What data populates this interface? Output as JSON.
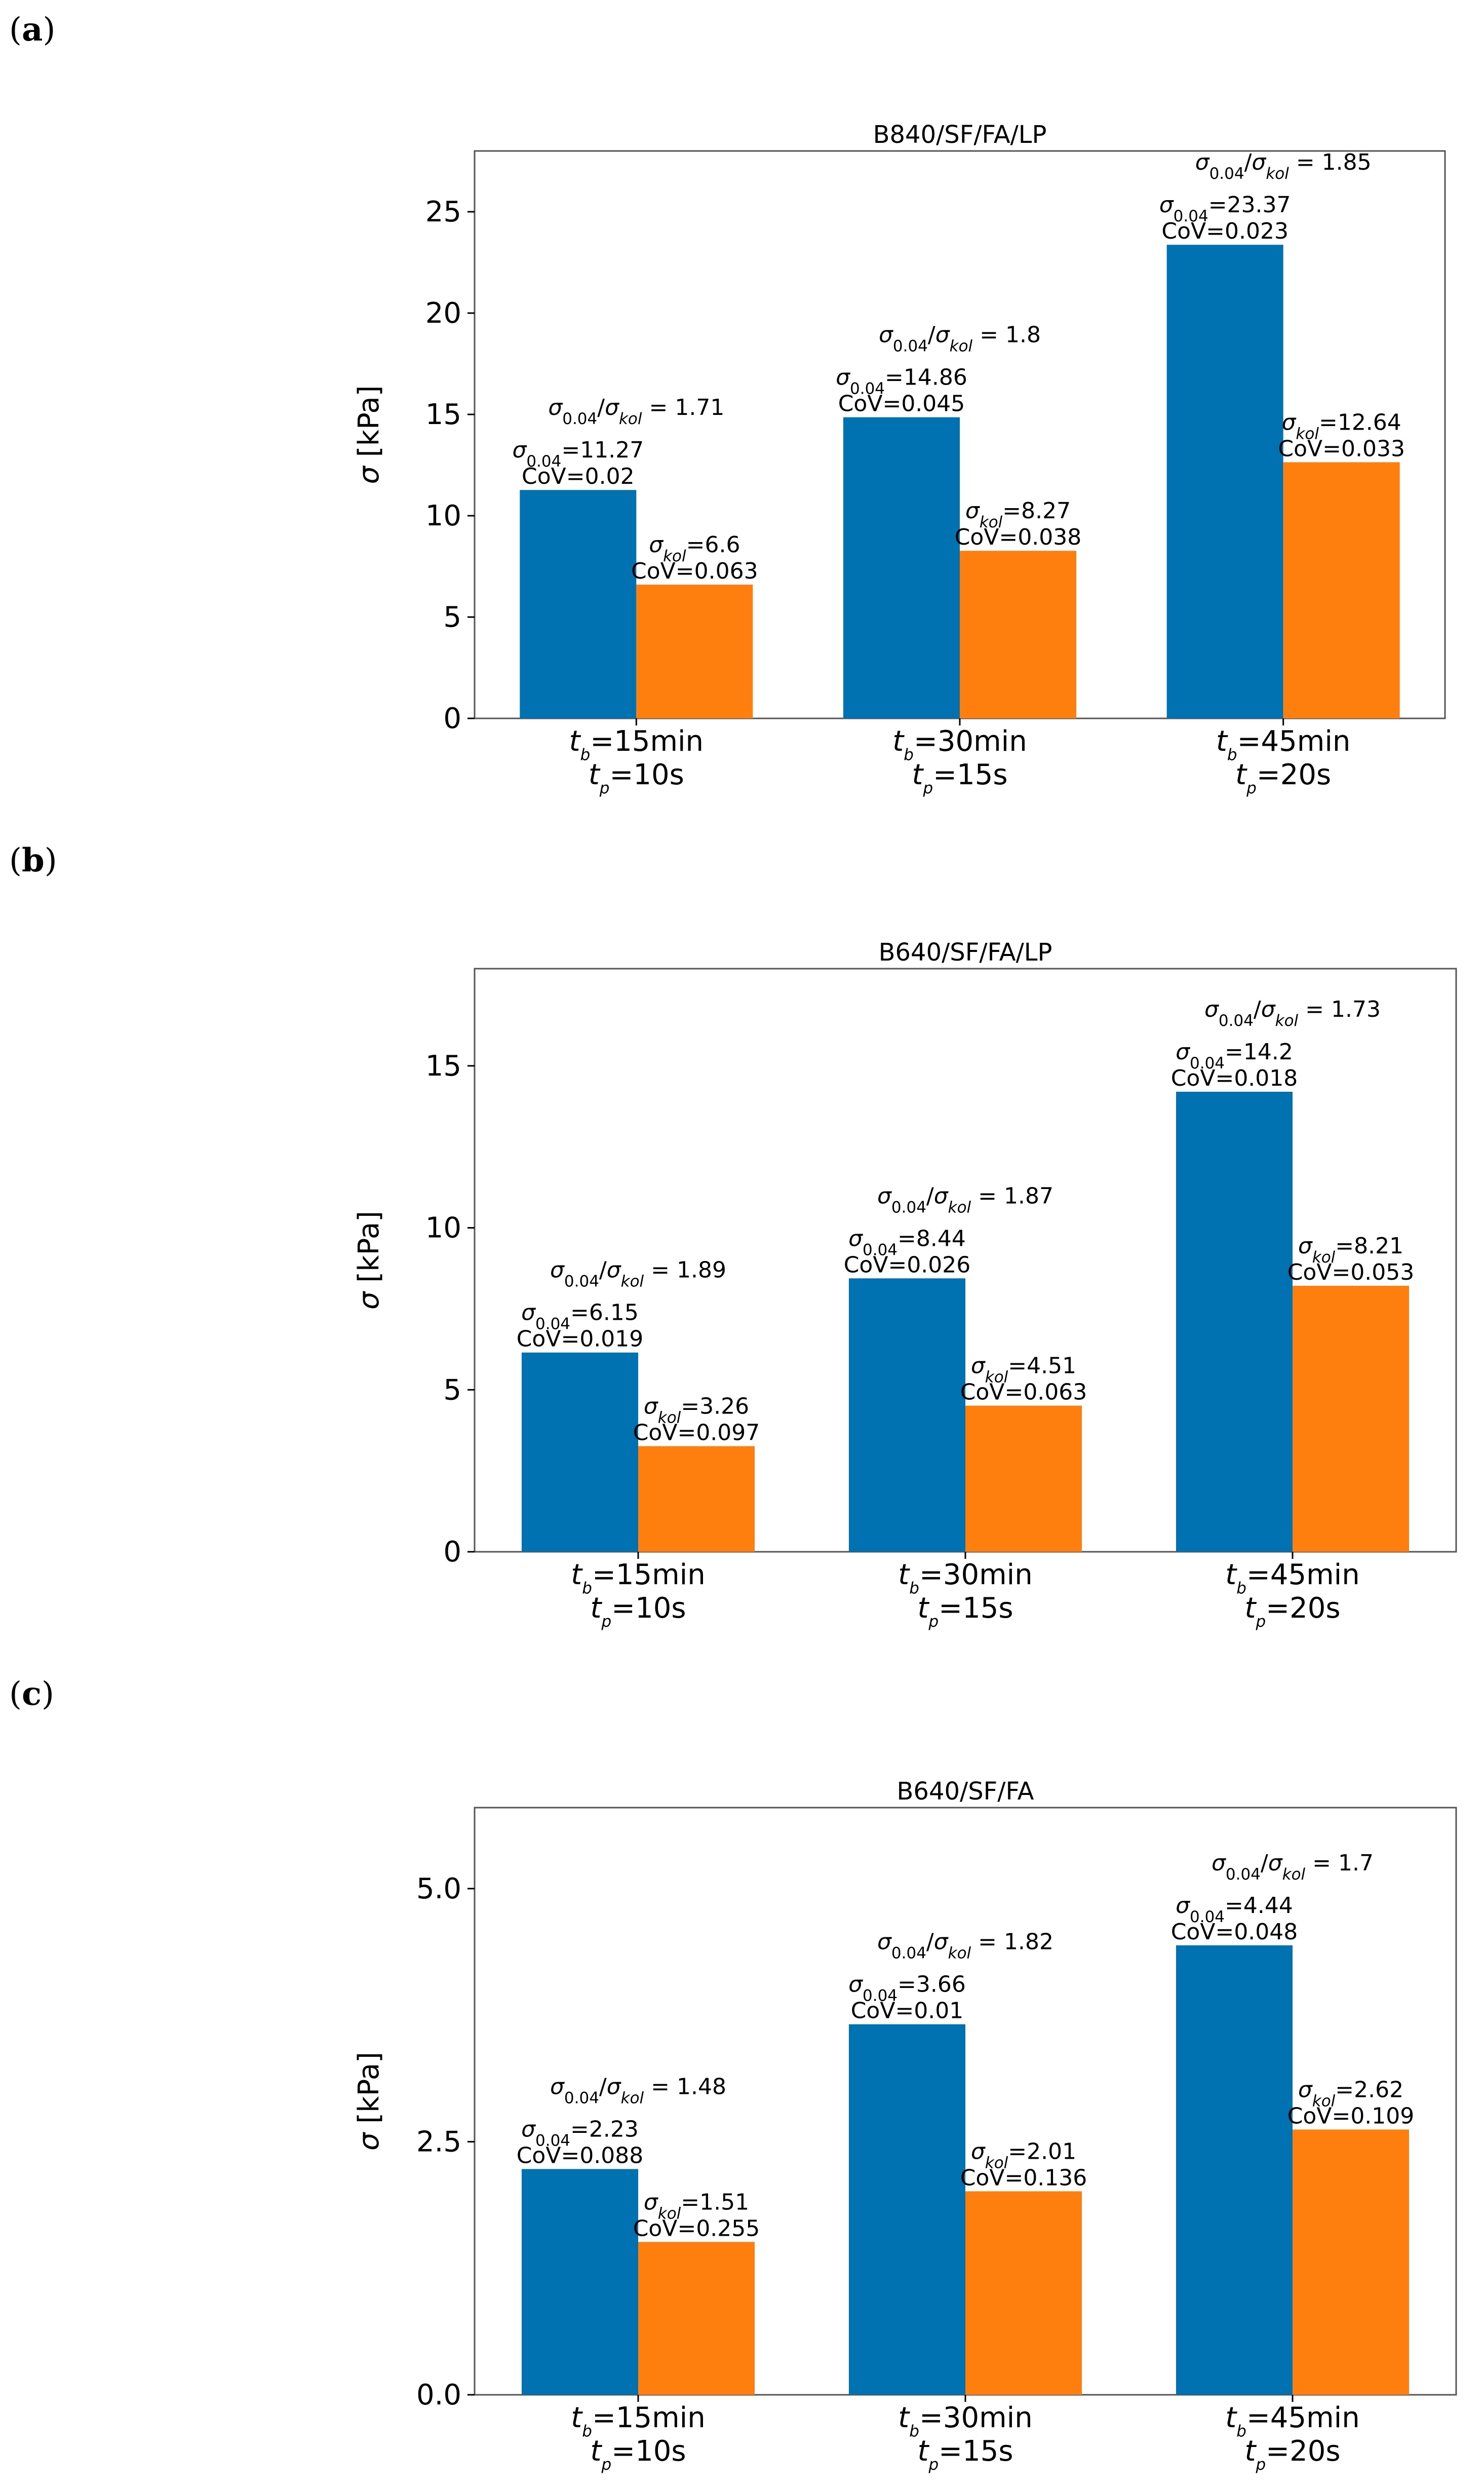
{
  "colors": {
    "bar1": "#0072b2",
    "bar2": "#ff7f0e",
    "frame": "#555555"
  },
  "chart_data": [
    {
      "type": "bar",
      "panel": "(a)",
      "title": "B840/SF/FA/LP",
      "ylabel": "σ [kPa]",
      "ylim": [
        0,
        28
      ],
      "yticks": [
        "0",
        "5",
        "10",
        "15",
        "20",
        "25"
      ],
      "ytick_values": [
        0,
        5,
        10,
        15,
        20,
        25
      ],
      "categories": [
        {
          "tb": "=15min",
          "tp": "=10s"
        },
        {
          "tb": "=30min",
          "tp": "=15s"
        },
        {
          "tb": "=45min",
          "tp": "=20s"
        }
      ],
      "series": [
        {
          "name": "σ0.04",
          "values": [
            11.27,
            14.86,
            23.37
          ],
          "cov": [
            "CoV=0.02",
            "CoV=0.045",
            "CoV=0.023"
          ],
          "labels": [
            "=11.27",
            "=14.86",
            "=23.37"
          ]
        },
        {
          "name": "σkol",
          "values": [
            6.6,
            8.27,
            12.64
          ],
          "cov": [
            "CoV=0.063",
            "CoV=0.038",
            "CoV=0.033"
          ],
          "labels": [
            "=6.6",
            "=8.27",
            "=12.64"
          ]
        }
      ],
      "ratios": [
        " = 1.71",
        " = 1.8",
        " = 1.85"
      ]
    },
    {
      "type": "bar",
      "panel": "(b)",
      "title": "B640/SF/FA/LP",
      "ylabel": "σ [kPa]",
      "ylim": [
        0,
        18
      ],
      "yticks": [
        "0",
        "5",
        "10",
        "15"
      ],
      "ytick_values": [
        0,
        5,
        10,
        15
      ],
      "categories": [
        {
          "tb": "=15min",
          "tp": "=10s"
        },
        {
          "tb": "=30min",
          "tp": "=15s"
        },
        {
          "tb": "=45min",
          "tp": "=20s"
        }
      ],
      "series": [
        {
          "name": "σ0.04",
          "values": [
            6.15,
            8.44,
            14.2
          ],
          "cov": [
            "CoV=0.019",
            "CoV=0.026",
            "CoV=0.018"
          ],
          "labels": [
            "=6.15",
            "=8.44",
            "=14.2"
          ]
        },
        {
          "name": "σkol",
          "values": [
            3.26,
            4.51,
            8.21
          ],
          "cov": [
            "CoV=0.097",
            "CoV=0.063",
            "CoV=0.053"
          ],
          "labels": [
            "=3.26",
            "=4.51",
            "=8.21"
          ]
        }
      ],
      "ratios": [
        " = 1.89",
        " = 1.87",
        " = 1.73"
      ]
    },
    {
      "type": "bar",
      "panel": "(c)",
      "title": "B640/SF/FA",
      "ylabel": "σ [kPa]",
      "ylim": [
        0,
        5.8
      ],
      "yticks": [
        "0.0",
        "2.5",
        "5.0"
      ],
      "ytick_values": [
        0,
        2.5,
        5.0
      ],
      "categories": [
        {
          "tb": "=15min",
          "tp": "=10s"
        },
        {
          "tb": "=30min",
          "tp": "=15s"
        },
        {
          "tb": "=45min",
          "tp": "=20s"
        }
      ],
      "series": [
        {
          "name": "σ0.04",
          "values": [
            2.23,
            3.66,
            4.44
          ],
          "cov": [
            "CoV=0.088",
            "CoV=0.01",
            "CoV=0.048"
          ],
          "labels": [
            "=2.23",
            "=3.66",
            "=4.44"
          ]
        },
        {
          "name": "σkol",
          "values": [
            1.51,
            2.01,
            2.62
          ],
          "cov": [
            "CoV=0.255",
            "CoV=0.136",
            "CoV=0.109"
          ],
          "labels": [
            "=1.51",
            "=2.01",
            "=2.62"
          ]
        }
      ],
      "ratios": [
        " = 1.48",
        " = 1.82",
        " = 1.7"
      ]
    }
  ]
}
